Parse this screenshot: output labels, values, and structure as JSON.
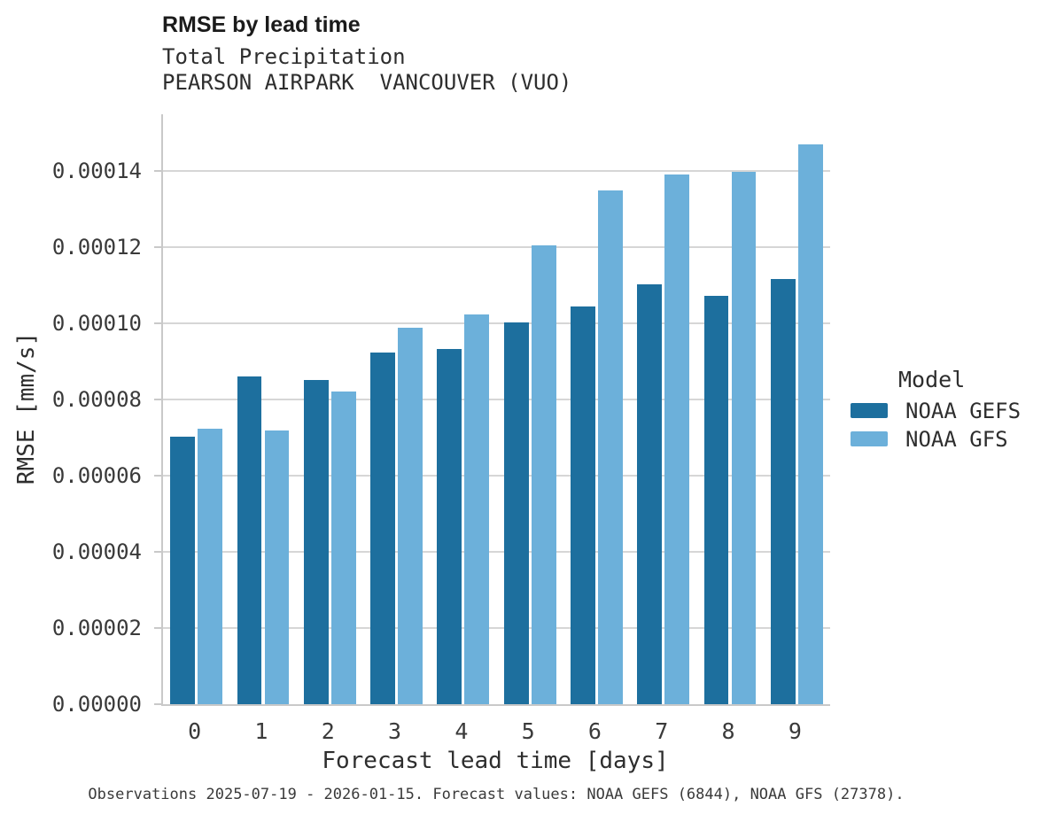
{
  "header": {
    "title": "RMSE by lead time",
    "subtitle": "Total Precipitation",
    "station": "PEARSON AIRPARK  VANCOUVER (VUO)"
  },
  "axes": {
    "x_label": "Forecast lead time [days]",
    "y_label": "RMSE [mm/s]",
    "y_ticks": [
      {
        "label": "0.00000",
        "value": 0.0
      },
      {
        "label": "0.00002",
        "value": 2e-05
      },
      {
        "label": "0.00004",
        "value": 4e-05
      },
      {
        "label": "0.00006",
        "value": 6e-05
      },
      {
        "label": "0.00008",
        "value": 8e-05
      },
      {
        "label": "0.00010",
        "value": 0.0001
      },
      {
        "label": "0.00012",
        "value": 0.00012
      },
      {
        "label": "0.00014",
        "value": 0.00014
      }
    ],
    "x_ticks": [
      "0",
      "1",
      "2",
      "3",
      "4",
      "5",
      "6",
      "7",
      "8",
      "9"
    ]
  },
  "legend": {
    "title": "Model",
    "entries": [
      {
        "label": "NOAA GEFS",
        "color": "#1d6f9e"
      },
      {
        "label": "NOAA GFS",
        "color": "#6cb0da"
      }
    ]
  },
  "footer": {
    "note": "Observations 2025-07-19 - 2026-01-15. Forecast values: NOAA GEFS (6844), NOAA GFS (27378)."
  },
  "colors": {
    "gefs": "#1d6f9e",
    "gfs": "#6cb0da",
    "gridline": "#d6d6d6",
    "spine": "#c9c9c9"
  },
  "chart_data": {
    "type": "bar",
    "title": "RMSE by lead time",
    "subtitle": "Total Precipitation",
    "station": "PEARSON AIRPARK  VANCOUVER (VUO)",
    "xlabel": "Forecast lead time [days]",
    "ylabel": "RMSE [mm/s]",
    "categories": [
      "0",
      "1",
      "2",
      "3",
      "4",
      "5",
      "6",
      "7",
      "8",
      "9"
    ],
    "series": [
      {
        "name": "NOAA GEFS",
        "color": "#1d6f9e",
        "values": [
          7.04e-05,
          8.6e-05,
          8.51e-05,
          9.25e-05,
          9.34e-05,
          0.0001004,
          0.0001046,
          0.0001103,
          0.0001073,
          0.0001116
        ]
      },
      {
        "name": "NOAA GFS",
        "color": "#6cb0da",
        "values": [
          7.23e-05,
          7.2e-05,
          8.22e-05,
          9.88e-05,
          0.0001025,
          0.0001205,
          0.0001349,
          0.0001391,
          0.0001399,
          0.0001472
        ]
      }
    ],
    "ylim": [
      0,
      0.000155
    ],
    "y_tick_step": 2e-05,
    "grid": true,
    "legend_title": "Model",
    "legend_position": "right"
  }
}
